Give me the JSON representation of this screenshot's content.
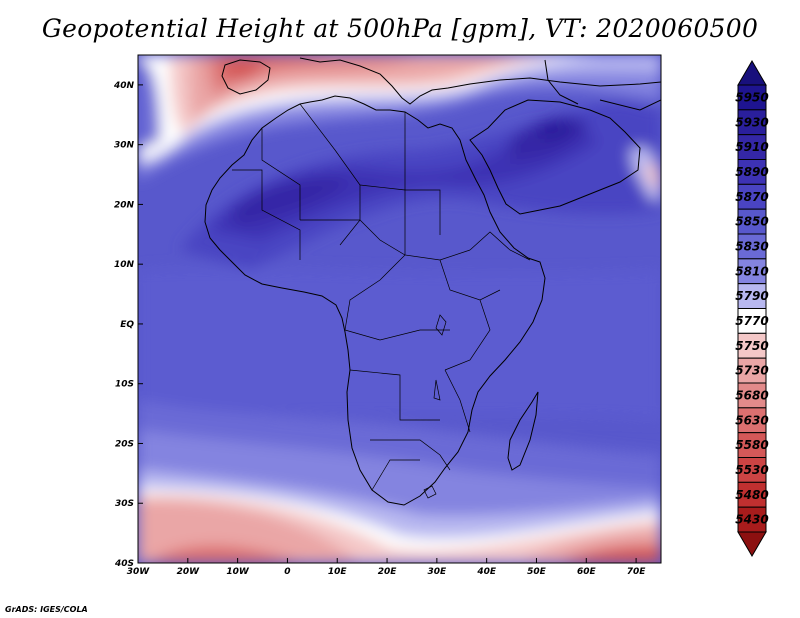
{
  "title": "Geopotential Height at 500hPa [gpm], VT: 2020060500",
  "credit": "GrADS: IGES/COLA",
  "map": {
    "projection": "latlon",
    "lon_range": [
      -30,
      75
    ],
    "lat_range": [
      -40,
      45
    ],
    "lon_ticks": [
      {
        "value": -30,
        "label": "30W"
      },
      {
        "value": -20,
        "label": "20W"
      },
      {
        "value": -10,
        "label": "10W"
      },
      {
        "value": 0,
        "label": "0"
      },
      {
        "value": 10,
        "label": "10E"
      },
      {
        "value": 20,
        "label": "20E"
      },
      {
        "value": 30,
        "label": "30E"
      },
      {
        "value": 40,
        "label": "40E"
      },
      {
        "value": 50,
        "label": "50E"
      },
      {
        "value": 60,
        "label": "60E"
      },
      {
        "value": 70,
        "label": "70E"
      }
    ],
    "lat_ticks": [
      {
        "value": 40,
        "label": "40N"
      },
      {
        "value": 30,
        "label": "30N"
      },
      {
        "value": 20,
        "label": "20N"
      },
      {
        "value": 10,
        "label": "10N"
      },
      {
        "value": 0,
        "label": "EQ"
      },
      {
        "value": -10,
        "label": "10S"
      },
      {
        "value": -20,
        "label": "20S"
      },
      {
        "value": -30,
        "label": "30S"
      },
      {
        "value": -40,
        "label": "40S"
      }
    ]
  },
  "colorbar": {
    "levels": [
      {
        "label": "5950",
        "color": "#1e1490"
      },
      {
        "label": "5930",
        "color": "#2a1f9c"
      },
      {
        "label": "5910",
        "color": "#3427a6"
      },
      {
        "label": "5890",
        "color": "#3d32b4"
      },
      {
        "label": "5870",
        "color": "#4a44c2"
      },
      {
        "label": "5850",
        "color": "#5858cc"
      },
      {
        "label": "5830",
        "color": "#6a6ad6"
      },
      {
        "label": "5810",
        "color": "#8484e0"
      },
      {
        "label": "5790",
        "color": "#b8b8f0"
      },
      {
        "label": "5770",
        "color": "#ffffff"
      },
      {
        "label": "5750",
        "color": "#f4c8c8"
      },
      {
        "label": "5730",
        "color": "#eaa6a6"
      },
      {
        "label": "5680",
        "color": "#e28a8a"
      },
      {
        "label": "5630",
        "color": "#dc7070"
      },
      {
        "label": "5580",
        "color": "#d45858"
      },
      {
        "label": "5530",
        "color": "#cc4444"
      },
      {
        "label": "5480",
        "color": "#c03030"
      },
      {
        "label": "5430",
        "color": "#a81c1c"
      }
    ],
    "top_arrow_color": "#18107c",
    "bottom_arrow_color": "#8c1010"
  }
}
